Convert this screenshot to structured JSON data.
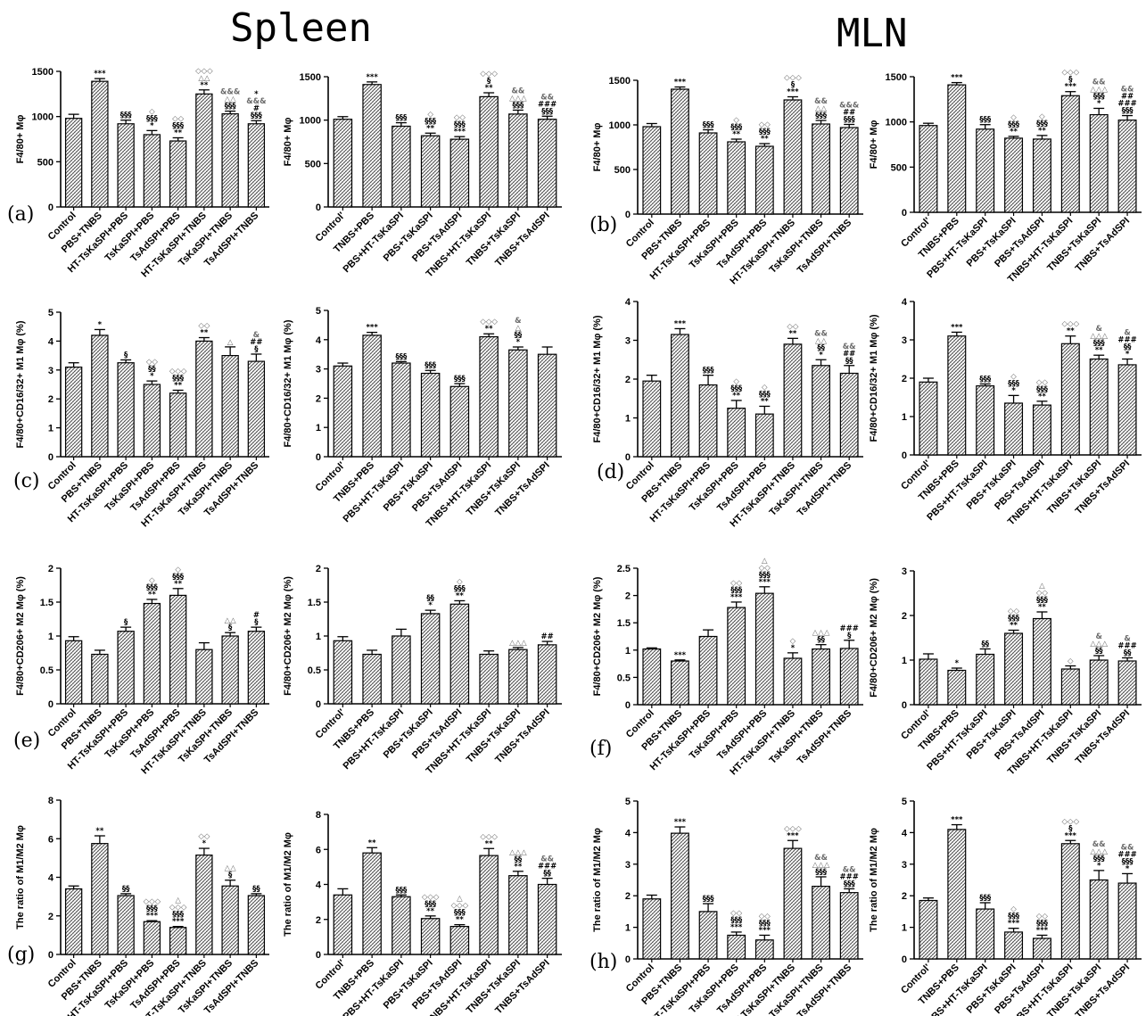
{
  "titles": {
    "spleen": "Spleen",
    "mln": "MLN"
  },
  "panel_letters": [
    "(a)",
    "(b)",
    "(c)",
    "(d)",
    "(e)",
    "(f)",
    "(g)",
    "(h)"
  ],
  "chart_data": [
    {
      "type": "bar",
      "ylabel": "F4/80+ Mφ",
      "ylim": [
        0,
        1500
      ],
      "yticks": [
        0,
        500,
        1000,
        1500
      ],
      "categories": [
        "Control",
        "PBS+TNBS",
        "HT-TsKaSPI+PBS",
        "TsKaSPI+PBS",
        "TsAdSPI+PBS",
        "HT-TsKaSPI+TNBS",
        "TsKaSPI+TNBS",
        "TsAdSPI+TNBS"
      ],
      "values": [
        980,
        1390,
        920,
        800,
        730,
        1250,
        1030,
        920
      ],
      "errors": [
        45,
        30,
        40,
        45,
        35,
        45,
        30,
        35
      ],
      "annotations": [
        "",
        "***",
        "§§§",
        "◇\n§§§\n*",
        "◇◇\n§§§\n**",
        "◇◇◇\n△△\n**",
        "&&&\n△△\n§§§",
        "*\n&&&\n#\n§§§"
      ]
    },
    {
      "type": "bar",
      "ylabel": "F4/80+ Mφ",
      "ylim": [
        0,
        1500
      ],
      "yticks": [
        0,
        500,
        1000,
        1500
      ],
      "categories": [
        "Control'",
        "TNBS+PBS",
        "PBS+HT-TsKaSPI",
        "PBS+TsKaSPI",
        "PBS+TsAdSPI",
        "TNBS+HT-TsKaSPI",
        "TNBS+TsKaSPI",
        "TNBS+TsAdSPI"
      ],
      "values": [
        1010,
        1410,
        930,
        820,
        780,
        1270,
        1070,
        1010
      ],
      "errors": [
        30,
        30,
        40,
        30,
        30,
        45,
        45,
        35
      ],
      "annotations": [
        "",
        "***",
        "§§§",
        "◇\n§§§\n**",
        "◇◇\n§§§\n***",
        "◇◇◇\n§\n**",
        "&&\n△△△\n§§§",
        "&&\n###\n§§§"
      ]
    },
    {
      "type": "bar",
      "ylabel": "F4/80+ Mφ",
      "ylim": [
        0,
        1500
      ],
      "yticks": [
        0,
        500,
        1000,
        1500
      ],
      "categories": [
        "Control",
        "PBS+TNBS",
        "HT-TsKaSPI+PBS",
        "TsKaSPI+PBS",
        "TsAdSPI+PBS",
        "HT-TsKaSPI+TNBS",
        "TsKaSPI+TNBS",
        "TsAdSPI+TNBS"
      ],
      "values": [
        980,
        1400,
        910,
        810,
        760,
        1280,
        1010,
        970
      ],
      "errors": [
        35,
        25,
        35,
        30,
        30,
        35,
        40,
        35
      ],
      "annotations": [
        "",
        "***",
        "§§§",
        "◇\n§§§\n**",
        "◇◇\n§§§\n**",
        "◇◇◇\n§\n***",
        "&&\n△△\n§§§",
        "&&&\n##\n§§§"
      ]
    },
    {
      "type": "bar",
      "ylabel": "F4/80+ Mφ",
      "ylim": [
        0,
        1500
      ],
      "yticks": [
        0,
        500,
        1000,
        1500
      ],
      "categories": [
        "Control'",
        "TNBS+PBS",
        "PBS+HT-TsKaSPI",
        "PBS+TsKaSPI",
        "PBS+TsAdSPI",
        "TNBS+HT-TsKaSPI",
        "TNBS+TsKaSPI",
        "TNBS+TsAdSPI"
      ],
      "values": [
        960,
        1410,
        920,
        820,
        810,
        1290,
        1080,
        1020
      ],
      "errors": [
        25,
        25,
        50,
        20,
        40,
        45,
        70,
        50
      ],
      "annotations": [
        "",
        "***",
        "§§§",
        "◇\n§§§\n**",
        "◇\n§§§\n**",
        "◇◇◇\n§\n***",
        "&&\n△△△\n§§§\n*",
        "&&\n##\n###\n§§§"
      ]
    },
    {
      "type": "bar",
      "ylabel": "F4/80+CD16/32+ M1 Mφ (%)",
      "ylim": [
        0,
        5
      ],
      "yticks": [
        0,
        1,
        2,
        3,
        4,
        5
      ],
      "categories": [
        "Control",
        "PBS+TNBS",
        "HT-TsKaSPI+PBS",
        "TsKaSPI+PBS",
        "TsAdSPI+PBS",
        "HT-TsKaSPI+TNBS",
        "TsKaSPI+TNBS",
        "TsAdSPI+TNBS"
      ],
      "values": [
        3.1,
        4.2,
        3.25,
        2.5,
        2.2,
        4.0,
        3.5,
        3.3
      ],
      "errors": [
        0.15,
        0.2,
        0.1,
        0.12,
        0.1,
        0.12,
        0.3,
        0.25
      ],
      "annotations": [
        "",
        "*",
        "§",
        "◇◇\n§§\n*",
        "◇◇◇\n§§§\n**",
        "◇◇\n**",
        "△",
        "&\n##\n§"
      ]
    },
    {
      "type": "bar",
      "ylabel": "F4/80+CD16/32+ M1 Mφ (%)",
      "ylim": [
        0,
        5
      ],
      "yticks": [
        0,
        1,
        2,
        3,
        4,
        5
      ],
      "categories": [
        "Control'",
        "TNBS+PBS",
        "PBS+HT-TsKaSPI",
        "PBS+TsKaSPI",
        "PBS+TsAdSPI",
        "TNBS+HT-TsKaSPI",
        "TNBS+TsKaSPI",
        "TNBS+TsAdSPI"
      ],
      "values": [
        3.1,
        4.15,
        3.2,
        2.85,
        2.4,
        4.1,
        3.65,
        3.5
      ],
      "errors": [
        0.1,
        0.1,
        0.05,
        0.1,
        0.1,
        0.1,
        0.1,
        0.25
      ],
      "annotations": [
        "",
        "***",
        "§§§",
        "§§§",
        "§§§",
        "◇◇◇\n**",
        "&\n△\n§§\n*",
        ""
      ]
    },
    {
      "type": "bar",
      "ylabel": "F4/80+CD16/32+ M1 Mφ (%)",
      "ylim": [
        0,
        4
      ],
      "yticks": [
        0,
        1,
        2,
        3,
        4
      ],
      "categories": [
        "Control",
        "PBS+TNBS",
        "HT-TsKaSPI+PBS",
        "TsKaSPI+PBS",
        "TsAdSPI+PBS",
        "HT-TsKaSPI+TNBS",
        "TsKaSPI+TNBS",
        "TsAdSPI+TNBS"
      ],
      "values": [
        1.95,
        3.15,
        1.85,
        1.25,
        1.1,
        2.9,
        2.35,
        2.15
      ],
      "errors": [
        0.15,
        0.15,
        0.25,
        0.2,
        0.2,
        0.15,
        0.15,
        0.2
      ],
      "annotations": [
        "",
        "***",
        "§§§",
        "◇\n§§§\n**",
        "◇\n§§§\n**",
        "◇◇\n**",
        "&&\n△△\n§§\n*",
        "&&\n##\n§§"
      ]
    },
    {
      "type": "bar",
      "ylabel": "F4/80+CD16/32+ M1 Mφ (%)",
      "ylim": [
        0,
        4
      ],
      "yticks": [
        0,
        1,
        2,
        3,
        4
      ],
      "categories": [
        "Control'",
        "TNBS+PBS",
        "PBS+HT-TsKaSPI",
        "PBS+TsKaSPI",
        "PBS+TsAdSPI",
        "TNBS+HT-TsKaSPI",
        "TNBS+TsKaSPI",
        "TNBS+TsAdSPI"
      ],
      "values": [
        1.9,
        3.1,
        1.8,
        1.35,
        1.3,
        2.9,
        2.5,
        2.35
      ],
      "errors": [
        0.1,
        0.1,
        0.05,
        0.2,
        0.1,
        0.2,
        0.1,
        0.15
      ],
      "annotations": [
        "",
        "***",
        "§§§",
        "◇\n§§§\n*",
        "◇◇\n§§§\n**",
        "◇◇◇\n**",
        "&\n△△△\n§§§\n**",
        "&\n###\n§§\n*"
      ]
    },
    {
      "type": "bar",
      "ylabel": "F4/80+CD206+ M2 Mφ (%)",
      "ylim": [
        0,
        2.0
      ],
      "yticks": [
        0.0,
        0.5,
        1.0,
        1.5,
        2.0
      ],
      "categories": [
        "Control",
        "PBS+TNBS",
        "HT-TsKaSPI+PBS",
        "TsKaSPI+PBS",
        "TsAdSPI+PBS",
        "HT-TsKaSPI+TNBS",
        "TsKaSPI+TNBS",
        "TsAdSPI+TNBS"
      ],
      "values": [
        0.93,
        0.73,
        1.07,
        1.48,
        1.6,
        0.8,
        1.0,
        1.07
      ],
      "errors": [
        0.06,
        0.06,
        0.06,
        0.06,
        0.1,
        0.1,
        0.05,
        0.06
      ],
      "annotations": [
        "",
        "",
        "§",
        "◇\n§§§\n**",
        "◇\n§§§\n**",
        "",
        "△△\n§",
        "#\n§"
      ]
    },
    {
      "type": "bar",
      "ylabel": "F4/80+CD206+ M2 Mφ (%)",
      "ylim": [
        0,
        2.0
      ],
      "yticks": [
        0.0,
        0.5,
        1.0,
        1.5,
        2.0
      ],
      "categories": [
        "Control'",
        "TNBS+PBS",
        "PBS+HT-TsKaSPI",
        "PBS+TsKaSPI",
        "PBS+TsAdSPI",
        "TNBS+HT-TsKaSPI",
        "TNBS+TsKaSPI",
        "TNBS+TsAdSPI"
      ],
      "values": [
        0.93,
        0.73,
        1.0,
        1.33,
        1.47,
        0.73,
        0.8,
        0.87
      ],
      "errors": [
        0.06,
        0.06,
        0.1,
        0.05,
        0.05,
        0.05,
        0.03,
        0.05
      ],
      "annotations": [
        "",
        "",
        "",
        "§§\n*",
        "◇\n§§§\n**",
        "",
        "△△△",
        "##"
      ]
    },
    {
      "type": "bar",
      "ylabel": "F4/80+CD206+ M2 Mφ (%)",
      "ylim": [
        0,
        2.5
      ],
      "yticks": [
        0.0,
        0.5,
        1.0,
        1.5,
        2.0,
        2.5
      ],
      "categories": [
        "Control",
        "PBS+TNBS",
        "HT-TsKaSPI+PBS",
        "TsKaSPI+PBS",
        "TsAdSPI+PBS",
        "HT-TsKaSPI+TNBS",
        "TsKaSPI+TNBS",
        "TsAdSPI+TNBS"
      ],
      "values": [
        1.02,
        0.8,
        1.25,
        1.78,
        2.04,
        0.85,
        1.02,
        1.03
      ],
      "errors": [
        0.02,
        0.02,
        0.12,
        0.1,
        0.12,
        0.1,
        0.08,
        0.15
      ],
      "annotations": [
        "",
        "***",
        "",
        "◇◇\n§§§\n***",
        "△\n◇◇\n§§§\n***",
        "◇\n*",
        "△△△\n§§",
        "###\n§"
      ]
    },
    {
      "type": "bar",
      "ylabel": "F4/80+CD206+ M2 Mφ (%)",
      "ylim": [
        0,
        3
      ],
      "yticks": [
        0,
        1,
        2,
        3
      ],
      "categories": [
        "Control'",
        "TNBS+PBS",
        "PBS+HT-TsKaSPI",
        "PBS+TsKaSPI",
        "PBS+TsAdSPI",
        "TNBS+HT-TsKaSPI",
        "TNBS+TsKaSPI",
        "TNBS+TsAdSPI"
      ],
      "values": [
        1.02,
        0.77,
        1.13,
        1.6,
        1.93,
        0.8,
        1.0,
        0.98
      ],
      "errors": [
        0.12,
        0.05,
        0.12,
        0.07,
        0.15,
        0.07,
        0.1,
        0.07
      ],
      "annotations": [
        "",
        "*",
        "§§",
        "◇◇\n§§§\n**",
        "△\n◇◇\n§§§\n**",
        "◇",
        "&\n△△△\n§§",
        "&\n###\n§§"
      ]
    },
    {
      "type": "bar",
      "ylabel": "The ratio of M1/M2 Mφ",
      "ylim": [
        0,
        8
      ],
      "yticks": [
        0,
        2,
        4,
        6,
        8
      ],
      "categories": [
        "Control",
        "PBS+TNBS",
        "HT-TsKaSPI+PBS",
        "TsKaSPI+PBS",
        "TsAdSPI+PBS",
        "HT-TsKaSPI+TNBS",
        "TsKaSPI+TNBS",
        "TsAdSPI+TNBS"
      ],
      "values": [
        3.4,
        5.75,
        3.05,
        1.7,
        1.4,
        5.15,
        3.55,
        3.05
      ],
      "errors": [
        0.15,
        0.4,
        0.1,
        0.05,
        0.05,
        0.35,
        0.3,
        0.1
      ],
      "annotations": [
        "",
        "**",
        "§§",
        "◇◇◇\n§§§\n***",
        "△\n◇◇◇\n§§§\n***",
        "◇◇\n*",
        "△△\n§",
        "§§"
      ]
    },
    {
      "type": "bar",
      "ylabel": "The ratio of M1/M2 Mφ",
      "ylim": [
        0,
        8
      ],
      "yticks": [
        0,
        2,
        4,
        6,
        8
      ],
      "categories": [
        "Control'",
        "TNBS+PBS",
        "PBS+HT-TsKaSPI",
        "PBS+TsKaSPI",
        "PBS+TsAdSPI",
        "TNBS+HT-TsKaSPI",
        "TNBS+TsKaSPI",
        "TNBS+TsAdSPI"
      ],
      "values": [
        3.4,
        5.8,
        3.3,
        2.05,
        1.6,
        5.65,
        4.5,
        4.0
      ],
      "errors": [
        0.35,
        0.3,
        0.1,
        0.15,
        0.1,
        0.4,
        0.25,
        0.35
      ],
      "annotations": [
        "",
        "**",
        "§§§",
        "◇◇◇\n§§§\n**",
        "△\n◇◇◇\n§§§\n**",
        "◇◇◇\n**",
        "△△△\n§§\n**",
        "&&\n###\n§§"
      ]
    },
    {
      "type": "bar",
      "ylabel": "The ratio of M1/M2 Mφ",
      "ylim": [
        0,
        5
      ],
      "yticks": [
        0,
        1,
        2,
        3,
        4,
        5
      ],
      "categories": [
        "Control",
        "PBS+TNBS",
        "HT-TsKaSPI+PBS",
        "TsKaSPI+PBS",
        "TsAdSPI+PBS",
        "HT-TsKaSPI+TNBS",
        "TsKaSPI+TNBS",
        "TsAdSPI+TNBS"
      ],
      "values": [
        1.9,
        3.98,
        1.5,
        0.75,
        0.6,
        3.5,
        2.3,
        2.1
      ],
      "errors": [
        0.12,
        0.2,
        0.25,
        0.1,
        0.15,
        0.25,
        0.3,
        0.12
      ],
      "annotations": [
        "",
        "***",
        "§§§",
        "◇◇\n§§§\n***",
        "◇◇\n§§§\n***",
        "◇◇◇\n***",
        "&&\n△△△\n§§§",
        "&&\n###\n§§§"
      ]
    },
    {
      "type": "bar",
      "ylabel": "The ratio of M1/M2 Mφ",
      "ylim": [
        0,
        5
      ],
      "yticks": [
        0,
        1,
        2,
        3,
        4,
        5
      ],
      "categories": [
        "Control'",
        "TNBS+PBS",
        "PBS+HT-TsKaSPI",
        "PBS+TsKaSPI",
        "PBS+TsAdSPI",
        "TNBS+HT-TsKaSPI",
        "TNBS+TsKaSPI",
        "TNBS+TsAdSPI"
      ],
      "values": [
        1.85,
        4.1,
        1.58,
        0.85,
        0.65,
        3.65,
        2.5,
        2.4
      ],
      "errors": [
        0.08,
        0.15,
        0.2,
        0.12,
        0.1,
        0.1,
        0.3,
        0.3
      ],
      "annotations": [
        "",
        "***",
        "§§§",
        "◇\n§§§\n***",
        "◇◇\n§§§\n***",
        "◇◇◇\n§\n***",
        "&&\n△△△\n§§§\n*",
        "&&\n###\n§§§\n*"
      ]
    }
  ]
}
